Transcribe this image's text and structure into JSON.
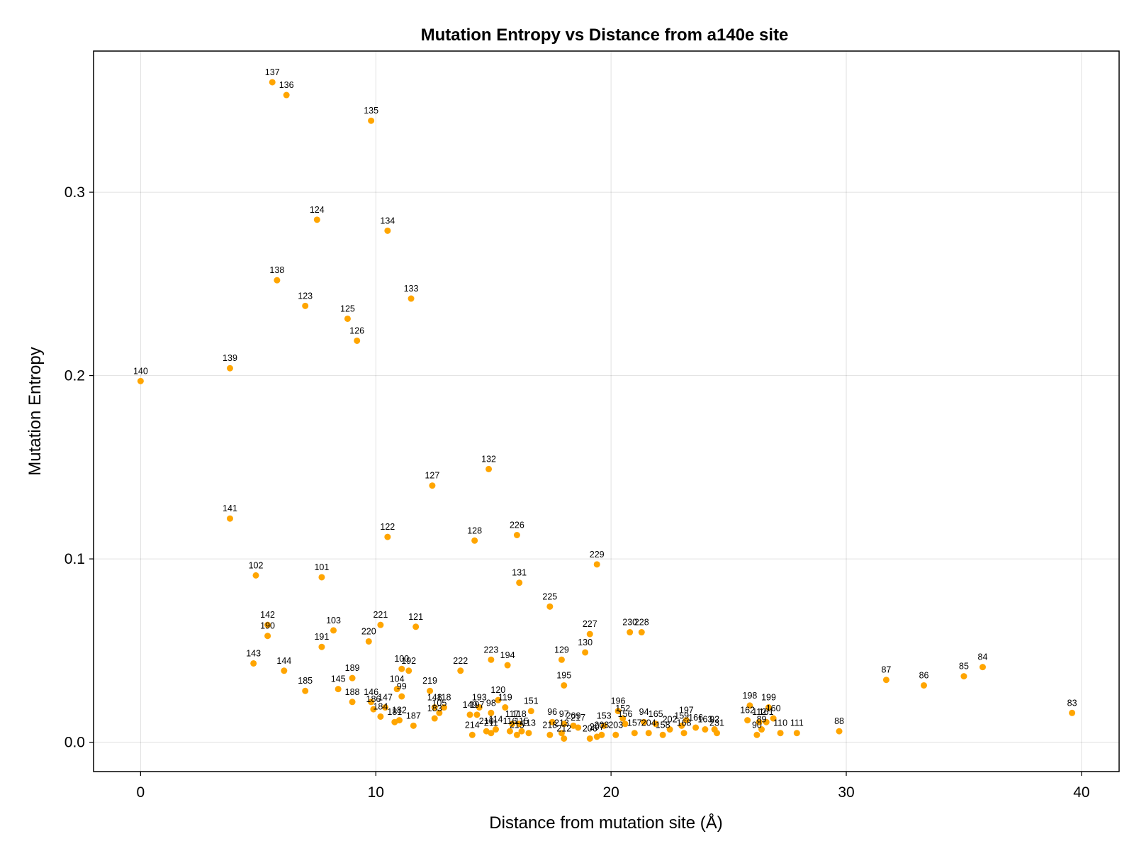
{
  "chart_data": {
    "type": "scatter",
    "title": "Mutation Entropy vs Distance from a140e site",
    "xlabel": "Distance from mutation site (Å)",
    "ylabel": "Mutation Entropy",
    "xlim": [
      -2,
      41.6
    ],
    "ylim": [
      -0.016,
      0.377
    ],
    "xticks": [
      0,
      10,
      20,
      30,
      40
    ],
    "yticks": [
      0.0,
      0.1,
      0.2,
      0.3
    ],
    "xtick_labels": [
      "0",
      "10",
      "20",
      "30",
      "40"
    ],
    "ytick_labels": [
      "0.0",
      "0.1",
      "0.2",
      "0.3"
    ],
    "grid": true,
    "marker_color": "#FFA500",
    "series": [
      {
        "points": [
          {
            "label": "140",
            "x": 0.0,
            "y": 0.197
          },
          {
            "label": "139",
            "x": 3.8,
            "y": 0.204
          },
          {
            "label": "141",
            "x": 3.8,
            "y": 0.122
          },
          {
            "label": "137",
            "x": 5.6,
            "y": 0.36
          },
          {
            "label": "136",
            "x": 6.2,
            "y": 0.353
          },
          {
            "label": "138",
            "x": 5.8,
            "y": 0.252
          },
          {
            "label": "124",
            "x": 7.5,
            "y": 0.285
          },
          {
            "label": "123",
            "x": 7.0,
            "y": 0.238
          },
          {
            "label": "125",
            "x": 8.8,
            "y": 0.231
          },
          {
            "label": "126",
            "x": 9.2,
            "y": 0.219
          },
          {
            "label": "135",
            "x": 9.8,
            "y": 0.339
          },
          {
            "label": "134",
            "x": 10.5,
            "y": 0.279
          },
          {
            "label": "133",
            "x": 11.5,
            "y": 0.242
          },
          {
            "label": "127",
            "x": 12.4,
            "y": 0.14
          },
          {
            "label": "132",
            "x": 14.8,
            "y": 0.149
          },
          {
            "label": "122",
            "x": 10.5,
            "y": 0.112
          },
          {
            "label": "128",
            "x": 14.2,
            "y": 0.11
          },
          {
            "label": "226",
            "x": 16.0,
            "y": 0.113
          },
          {
            "label": "131",
            "x": 16.1,
            "y": 0.087
          },
          {
            "label": "229",
            "x": 19.4,
            "y": 0.097
          },
          {
            "label": "225",
            "x": 17.4,
            "y": 0.074
          },
          {
            "label": "102",
            "x": 4.9,
            "y": 0.091
          },
          {
            "label": "101",
            "x": 7.7,
            "y": 0.09
          },
          {
            "label": "142",
            "x": 5.4,
            "y": 0.064
          },
          {
            "label": "190",
            "x": 5.4,
            "y": 0.058
          },
          {
            "label": "103",
            "x": 8.2,
            "y": 0.061
          },
          {
            "label": "221",
            "x": 10.2,
            "y": 0.064
          },
          {
            "label": "121",
            "x": 11.7,
            "y": 0.063
          },
          {
            "label": "220",
            "x": 9.7,
            "y": 0.055
          },
          {
            "label": "191",
            "x": 7.7,
            "y": 0.052
          },
          {
            "label": "143",
            "x": 4.8,
            "y": 0.043
          },
          {
            "label": "144",
            "x": 6.1,
            "y": 0.039
          },
          {
            "label": "185",
            "x": 7.0,
            "y": 0.028
          },
          {
            "label": "189",
            "x": 9.0,
            "y": 0.035
          },
          {
            "label": "145",
            "x": 8.4,
            "y": 0.029
          },
          {
            "label": "188",
            "x": 9.0,
            "y": 0.022
          },
          {
            "label": "146",
            "x": 9.8,
            "y": 0.022
          },
          {
            "label": "186",
            "x": 9.9,
            "y": 0.018
          },
          {
            "label": "147",
            "x": 10.4,
            "y": 0.019
          },
          {
            "label": "184",
            "x": 10.2,
            "y": 0.014
          },
          {
            "label": "100",
            "x": 11.1,
            "y": 0.04
          },
          {
            "label": "192",
            "x": 11.4,
            "y": 0.039
          },
          {
            "label": "104",
            "x": 10.9,
            "y": 0.029
          },
          {
            "label": "99",
            "x": 11.1,
            "y": 0.025
          },
          {
            "label": "182",
            "x": 11.0,
            "y": 0.012
          },
          {
            "label": "181",
            "x": 10.8,
            "y": 0.011
          },
          {
            "label": "187",
            "x": 11.6,
            "y": 0.009
          },
          {
            "label": "219",
            "x": 12.3,
            "y": 0.028
          },
          {
            "label": "148",
            "x": 12.5,
            "y": 0.019
          },
          {
            "label": "118",
            "x": 12.9,
            "y": 0.019
          },
          {
            "label": "105",
            "x": 12.7,
            "y": 0.016
          },
          {
            "label": "183",
            "x": 12.5,
            "y": 0.013
          },
          {
            "label": "222",
            "x": 13.6,
            "y": 0.039
          },
          {
            "label": "223",
            "x": 14.9,
            "y": 0.045
          },
          {
            "label": "194",
            "x": 15.6,
            "y": 0.042
          },
          {
            "label": "193",
            "x": 14.4,
            "y": 0.019
          },
          {
            "label": "149",
            "x": 14.0,
            "y": 0.015
          },
          {
            "label": "197",
            "x": 14.3,
            "y": 0.015
          },
          {
            "label": "98",
            "x": 14.9,
            "y": 0.016
          },
          {
            "label": "120",
            "x": 15.2,
            "y": 0.023
          },
          {
            "label": "119",
            "x": 15.5,
            "y": 0.019
          },
          {
            "label": "117",
            "x": 15.8,
            "y": 0.01
          },
          {
            "label": "118",
            "x": 16.1,
            "y": 0.01
          },
          {
            "label": "151",
            "x": 16.6,
            "y": 0.017
          },
          {
            "label": "214",
            "x": 14.1,
            "y": 0.004
          },
          {
            "label": "210",
            "x": 14.7,
            "y": 0.006
          },
          {
            "label": "211",
            "x": 14.9,
            "y": 0.005
          },
          {
            "label": "114",
            "x": 15.1,
            "y": 0.007
          },
          {
            "label": "116",
            "x": 15.7,
            "y": 0.006
          },
          {
            "label": "215",
            "x": 16.0,
            "y": 0.004
          },
          {
            "label": "115",
            "x": 16.2,
            "y": 0.006
          },
          {
            "label": "113",
            "x": 16.5,
            "y": 0.005
          },
          {
            "label": "96",
            "x": 17.5,
            "y": 0.011
          },
          {
            "label": "97",
            "x": 18.0,
            "y": 0.01
          },
          {
            "label": "209",
            "x": 18.4,
            "y": 0.009
          },
          {
            "label": "217",
            "x": 18.6,
            "y": 0.008
          },
          {
            "label": "218",
            "x": 17.4,
            "y": 0.004
          },
          {
            "label": "213",
            "x": 17.9,
            "y": 0.005
          },
          {
            "label": "212",
            "x": 18.0,
            "y": 0.002
          },
          {
            "label": "129",
            "x": 17.9,
            "y": 0.045
          },
          {
            "label": "195",
            "x": 18.0,
            "y": 0.031
          },
          {
            "label": "130",
            "x": 18.9,
            "y": 0.049
          },
          {
            "label": "227",
            "x": 19.1,
            "y": 0.059
          },
          {
            "label": "230",
            "x": 20.8,
            "y": 0.06
          },
          {
            "label": "228",
            "x": 21.3,
            "y": 0.06
          },
          {
            "label": "196",
            "x": 20.3,
            "y": 0.017
          },
          {
            "label": "152",
            "x": 20.5,
            "y": 0.013
          },
          {
            "label": "153",
            "x": 19.7,
            "y": 0.009
          },
          {
            "label": "156",
            "x": 20.6,
            "y": 0.01
          },
          {
            "label": "206",
            "x": 19.1,
            "y": 0.002
          },
          {
            "label": "207",
            "x": 19.4,
            "y": 0.003
          },
          {
            "label": "208",
            "x": 19.6,
            "y": 0.004
          },
          {
            "label": "203",
            "x": 20.2,
            "y": 0.004
          },
          {
            "label": "157",
            "x": 21.0,
            "y": 0.005
          },
          {
            "label": "94",
            "x": 21.4,
            "y": 0.011
          },
          {
            "label": "165",
            "x": 21.9,
            "y": 0.01
          },
          {
            "label": "204",
            "x": 21.6,
            "y": 0.005
          },
          {
            "label": "158",
            "x": 22.2,
            "y": 0.004
          },
          {
            "label": "202",
            "x": 22.5,
            "y": 0.007
          },
          {
            "label": "197",
            "x": 23.2,
            "y": 0.012
          },
          {
            "label": "159",
            "x": 23.0,
            "y": 0.009
          },
          {
            "label": "168",
            "x": 23.1,
            "y": 0.005
          },
          {
            "label": "166",
            "x": 23.6,
            "y": 0.008
          },
          {
            "label": "163",
            "x": 24.0,
            "y": 0.007
          },
          {
            "label": "92",
            "x": 24.4,
            "y": 0.007
          },
          {
            "label": "231",
            "x": 24.5,
            "y": 0.005
          },
          {
            "label": "198",
            "x": 25.9,
            "y": 0.02
          },
          {
            "label": "162",
            "x": 25.8,
            "y": 0.012
          },
          {
            "label": "112",
            "x": 26.3,
            "y": 0.011
          },
          {
            "label": "199",
            "x": 26.7,
            "y": 0.019
          },
          {
            "label": "160",
            "x": 26.9,
            "y": 0.013
          },
          {
            "label": "161",
            "x": 26.6,
            "y": 0.011
          },
          {
            "label": "89",
            "x": 26.4,
            "y": 0.007
          },
          {
            "label": "90",
            "x": 26.2,
            "y": 0.004
          },
          {
            "label": "110",
            "x": 27.2,
            "y": 0.005
          },
          {
            "label": "111",
            "x": 27.9,
            "y": 0.005
          },
          {
            "label": "88",
            "x": 29.7,
            "y": 0.006
          },
          {
            "label": "87",
            "x": 31.7,
            "y": 0.034
          },
          {
            "label": "86",
            "x": 33.3,
            "y": 0.031
          },
          {
            "label": "85",
            "x": 35.0,
            "y": 0.036
          },
          {
            "label": "84",
            "x": 35.8,
            "y": 0.041
          },
          {
            "label": "83",
            "x": 39.6,
            "y": 0.016
          }
        ]
      }
    ]
  }
}
